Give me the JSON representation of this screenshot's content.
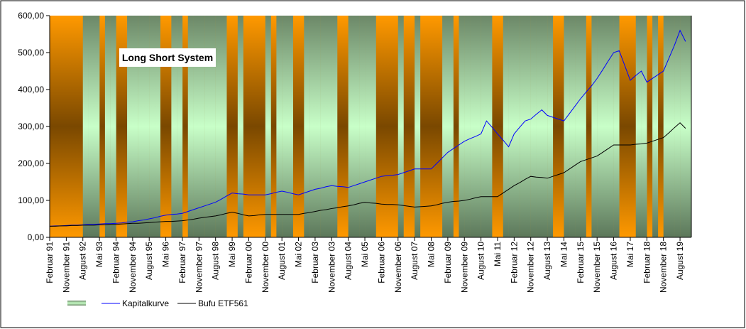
{
  "chart_data": {
    "type": "line",
    "title": "Long Short System",
    "categories": [
      "Februar 91",
      null,
      null,
      "November 91",
      null,
      null,
      "August 92",
      null,
      null,
      "Mai 93",
      null,
      null,
      "Februar 94",
      null,
      null,
      "November 94",
      null,
      null,
      "August 95",
      null,
      null,
      "Mai 96",
      null,
      null,
      "Februar 97",
      null,
      null,
      "November 97",
      null,
      null,
      "August 98",
      null,
      null,
      "Mai 99",
      null,
      null,
      "Februar 00",
      null,
      null,
      "November 00",
      null,
      null,
      "August 01",
      null,
      null,
      "Mai 02",
      null,
      null,
      "Februar 03",
      null,
      null,
      "November 03",
      null,
      null,
      "August 04",
      null,
      null,
      "Mai 05",
      null,
      null,
      "Februar 06",
      null,
      null,
      "November 06",
      null,
      null,
      "August 07",
      null,
      null,
      "Mai 08",
      null,
      null,
      "Februar 09",
      null,
      null,
      "November 09",
      null,
      null,
      "August 10",
      null,
      null,
      "Mai 11",
      null,
      null,
      "Februar 12",
      null,
      null,
      "November 12",
      null,
      null,
      "August 13",
      null,
      null,
      "Mai 14",
      null,
      null,
      "Februar 15",
      null,
      null,
      "November 15",
      null,
      null,
      "August 16",
      null,
      null,
      "Mai 17",
      null,
      null,
      "Februar 18",
      null,
      null,
      "November 18",
      null,
      null,
      "August 19",
      null
    ],
    "series": [
      {
        "type": "area",
        "color": "#c8ffc8",
        "values": [
          0,
          0,
          0,
          0,
          0,
          0,
          600,
          600,
          600,
          0,
          600,
          600,
          0,
          0,
          600,
          600,
          600,
          600,
          600,
          600,
          0,
          0,
          600,
          600,
          0,
          600,
          600,
          600,
          600,
          600,
          600,
          600,
          0,
          0,
          600,
          0,
          0,
          0,
          0,
          600,
          0,
          600,
          600,
          600,
          0,
          0,
          600,
          600,
          600,
          600,
          600,
          600,
          0,
          0,
          600,
          600,
          600,
          600,
          600,
          0,
          0,
          0,
          0,
          600,
          0,
          0,
          600,
          0,
          0,
          0,
          0,
          600,
          600,
          0,
          600,
          600,
          600,
          600,
          600,
          600,
          0,
          0,
          600,
          600,
          600,
          600,
          600,
          600,
          600,
          600,
          600,
          0,
          0,
          600,
          600,
          600,
          600,
          0,
          600,
          600,
          600,
          600,
          600,
          0,
          0,
          0,
          600,
          600,
          0,
          600,
          0,
          600,
          600,
          600,
          600,
          600
        ]
      },
      {
        "name": "Kapitalkurve",
        "color": "#0000ff",
        "values": [
          30,
          31,
          31,
          32,
          33,
          33,
          34,
          35,
          35,
          36,
          37,
          37,
          38,
          39,
          41,
          42,
          45,
          47,
          50,
          53,
          57,
          60,
          62,
          63,
          65,
          70,
          75,
          80,
          85,
          90,
          95,
          103,
          112,
          120,
          118,
          117,
          115,
          115,
          115,
          115,
          118,
          122,
          125,
          122,
          118,
          115,
          120,
          125,
          130,
          133,
          137,
          140,
          138,
          137,
          135,
          140,
          145,
          150,
          155,
          160,
          165,
          167,
          168,
          170,
          175,
          180,
          185,
          185,
          185,
          185,
          200,
          215,
          230,
          240,
          250,
          260,
          267,
          273,
          280,
          315,
          298,
          280,
          263,
          245,
          280,
          298,
          315,
          320,
          333,
          345,
          330,
          325,
          320,
          315,
          335,
          355,
          375,
          393,
          410,
          430,
          453,
          477,
          500,
          505,
          465,
          425,
          438,
          450,
          420,
          430,
          440,
          450,
          485,
          520,
          560,
          530
        ]
      },
      {
        "name": "Bufu ETF561",
        "color": "#000000",
        "values": [
          30,
          30,
          31,
          31,
          32,
          32,
          33,
          33,
          33,
          34,
          34,
          35,
          35,
          36,
          37,
          38,
          38,
          39,
          40,
          41,
          42,
          43,
          43,
          44,
          45,
          47,
          49,
          52,
          54,
          56,
          58,
          61,
          65,
          68,
          65,
          61,
          58,
          59,
          61,
          62,
          62,
          62,
          62,
          62,
          62,
          62,
          65,
          67,
          70,
          73,
          75,
          78,
          80,
          83,
          85,
          88,
          92,
          95,
          93,
          92,
          90,
          89,
          89,
          88,
          86,
          84,
          82,
          83,
          84,
          85,
          88,
          92,
          95,
          97,
          98,
          100,
          103,
          107,
          110,
          110,
          110,
          110,
          120,
          130,
          140,
          148,
          157,
          165,
          163,
          162,
          160,
          165,
          170,
          175,
          185,
          195,
          205,
          210,
          215,
          220,
          230,
          240,
          250,
          250,
          250,
          250,
          252,
          253,
          255,
          260,
          265,
          270,
          283,
          297,
          310,
          295
        ]
      }
    ],
    "ylim": [
      0,
      600
    ],
    "yticks": [
      {
        "value": 0,
        "label": "0,00"
      },
      {
        "value": 100,
        "label": "100,00"
      },
      {
        "value": 200,
        "label": "200,00"
      },
      {
        "value": 300,
        "label": "300,00"
      },
      {
        "value": 400,
        "label": "400,00"
      },
      {
        "value": 500,
        "label": "500,00"
      },
      {
        "value": 600,
        "label": "600,00"
      }
    ]
  }
}
